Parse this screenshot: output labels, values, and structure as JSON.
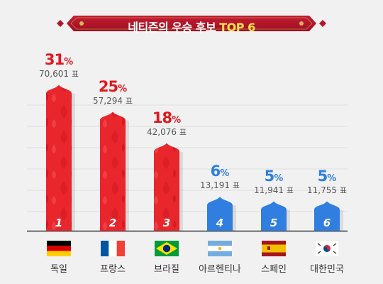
{
  "title": {
    "main": "네티즌의 우승 후보",
    "highlight": "TOP 6"
  },
  "colors": {
    "banner": "#b5152b",
    "bar_red": "#e8262c",
    "bar_blue": "#2f7ee0",
    "pct_red": "#e0181e",
    "pct_blue": "#2f7ee0",
    "background": "#f1f1f1"
  },
  "chart_data": {
    "type": "bar",
    "title": "네티즌의 우승 후보 TOP 6",
    "categories": [
      "독일",
      "프랑스",
      "브라질",
      "아르헨티나",
      "스페인",
      "대한민국"
    ],
    "ranks": [
      "1",
      "2",
      "3",
      "4",
      "5",
      "6"
    ],
    "values": [
      31,
      25,
      18,
      6,
      5,
      5
    ],
    "percent_labels": [
      "31",
      "25",
      "18",
      "6",
      "5",
      "5"
    ],
    "percent_unit": "%",
    "votes": [
      70601,
      57294,
      42076,
      13191,
      11941,
      11755
    ],
    "vote_labels": [
      "70,601",
      "57,294",
      "42,076",
      "13,191",
      "11,941",
      "11,755"
    ],
    "vote_unit": "표",
    "bar_colors": [
      "red",
      "red",
      "red",
      "blue",
      "blue",
      "blue"
    ],
    "flags": [
      "germany-flag-icon",
      "france-flag-icon",
      "brazil-flag-icon",
      "argentina-flag-icon",
      "spain-flag-icon",
      "south-korea-flag-icon"
    ],
    "grid": true
  }
}
